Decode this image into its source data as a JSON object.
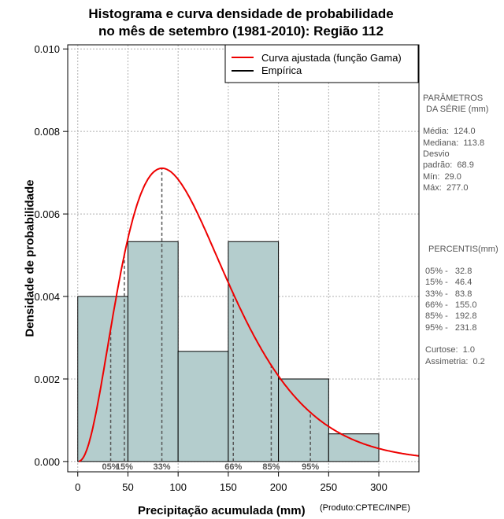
{
  "chart_data": {
    "type": "histogram",
    "title": "Histograma e curva densidade de probabilidade",
    "subtitle": "no mês de setembro (1981-2010): Região 112",
    "xlabel": "Precipitação acumulada (mm)",
    "ylabel": "Densidade de probabilidade",
    "credit": "(Produto:CPTEC/INPE)",
    "xlim": [
      -10,
      340
    ],
    "ylim": [
      -0.00025,
      0.0101
    ],
    "x_ticks": [
      "0",
      "50",
      "100",
      "150",
      "200",
      "250",
      "300"
    ],
    "y_ticks": [
      "0.000",
      "0.002",
      "0.004",
      "0.006",
      "0.008",
      "0.010"
    ],
    "bins": [
      {
        "from": 0,
        "to": 50,
        "density": 0.004
      },
      {
        "from": 50,
        "to": 100,
        "density": 0.00533
      },
      {
        "from": 100,
        "to": 150,
        "density": 0.00267
      },
      {
        "from": 150,
        "to": 200,
        "density": 0.00533
      },
      {
        "from": 200,
        "to": 250,
        "density": 0.002
      },
      {
        "from": 250,
        "to": 300,
        "density": 0.00067
      }
    ],
    "gamma_fit": {
      "shape": 3.4,
      "scale": 35.0,
      "x_range": [
        1,
        340
      ]
    },
    "legend": [
      {
        "label": "Curva ajustada (função Gama)",
        "color": "#ee0000"
      },
      {
        "label": "Empírica",
        "color": "#000000"
      }
    ],
    "percentile_lines": [
      {
        "label": "05%",
        "x": 32.8
      },
      {
        "label": "15%",
        "x": 46.4
      },
      {
        "label": "33%",
        "x": 83.8
      },
      {
        "label": "66%",
        "x": 155.0
      },
      {
        "label": "85%",
        "x": 192.8
      },
      {
        "label": "95%",
        "x": 231.8
      }
    ],
    "colors": {
      "bar_fill": "#b4cdcd",
      "curve": "#ee0000",
      "grid": "#b0b0b0",
      "pct_line": "#555555"
    }
  },
  "parametros": {
    "heading1": "PARÂMETROS",
    "heading2": "DA SÉRIE (mm)",
    "lines": [
      "Média:  124.0",
      "Mediana:  113.8",
      "Desvio",
      "padrão:  68.9",
      "Mín:  29.0",
      "Máx:  277.0"
    ]
  },
  "percentis": {
    "heading": "PERCENTIS(mm)",
    "lines": [
      "05% -   32.8",
      "15% -   46.4",
      "33% -   83.8",
      "66% -   155.0",
      "85% -   192.8",
      "95% -   231.8"
    ],
    "curtose": "Curtose:  1.0",
    "assimetria": "Assimetria:  0.2"
  }
}
